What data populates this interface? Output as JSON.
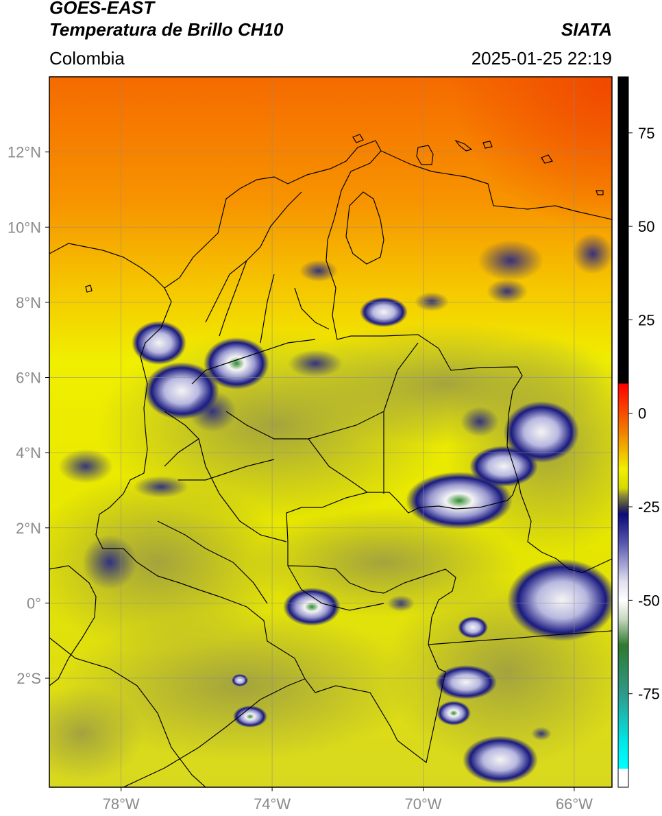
{
  "header": {
    "satellite": "GOES-EAST",
    "product": "Temperatura de Brillo CH10",
    "organization": "SIATA",
    "region": "Colombia",
    "timestamp": "2025-01-25 22:19"
  },
  "map": {
    "lon_range": [
      -79.9,
      -65.0
    ],
    "lat_range": [
      -4.9,
      14.0
    ],
    "lon_ticks": [
      {
        "value": -78,
        "label": "78°W"
      },
      {
        "value": -74,
        "label": "74°W"
      },
      {
        "value": -70,
        "label": "70°W"
      },
      {
        "value": -66,
        "label": "66°W"
      }
    ],
    "lat_ticks": [
      {
        "value": 12,
        "label": "12°N"
      },
      {
        "value": 10,
        "label": "10°N"
      },
      {
        "value": 8,
        "label": "8°N"
      },
      {
        "value": 6,
        "label": "6°N"
      },
      {
        "value": 4,
        "label": "4°N"
      },
      {
        "value": 2,
        "label": "2°N"
      },
      {
        "value": 0,
        "label": "0°"
      },
      {
        "value": -2,
        "label": "2°S"
      }
    ],
    "colors": {
      "warm_orange": "#f56a00",
      "mid_orange": "#f7a000",
      "yellow": "#f0ef00",
      "olive": "#b4b430",
      "deep_blue": "#1a1a80",
      "white": "#f4f4f4",
      "green": "#2e8b2e"
    }
  },
  "colorbar": {
    "range": [
      -100,
      90
    ],
    "ticks": [
      {
        "value": 75,
        "label": "75"
      },
      {
        "value": 50,
        "label": "50"
      },
      {
        "value": 25,
        "label": "25"
      },
      {
        "value": 0,
        "label": "0"
      },
      {
        "value": -25,
        "label": "-25"
      },
      {
        "value": -50,
        "label": "-50"
      },
      {
        "value": -75,
        "label": "-75"
      }
    ],
    "stops": [
      {
        "value": 90,
        "color": "#000000"
      },
      {
        "value": 8,
        "color": "#000000"
      },
      {
        "value": 7.9,
        "color": "#ff0000"
      },
      {
        "value": -5,
        "color": "#f08000"
      },
      {
        "value": -15,
        "color": "#f0f000"
      },
      {
        "value": -20,
        "color": "#d8d800"
      },
      {
        "value": -22,
        "color": "#8a8a3a"
      },
      {
        "value": -25,
        "color": "#3a3a4a"
      },
      {
        "value": -27,
        "color": "#0a0a7a"
      },
      {
        "value": -35,
        "color": "#5a5ab0"
      },
      {
        "value": -45,
        "color": "#e0e0f0"
      },
      {
        "value": -50,
        "color": "#ffffff"
      },
      {
        "value": -55,
        "color": "#c8d8c0"
      },
      {
        "value": -62,
        "color": "#2e7a2e"
      },
      {
        "value": -75,
        "color": "#2e9a8a"
      },
      {
        "value": -88,
        "color": "#00e8e8"
      },
      {
        "value": -95,
        "color": "#00ffff"
      },
      {
        "value": -95.1,
        "color": "#ffffff"
      },
      {
        "value": -100,
        "color": "#ffffff"
      }
    ]
  }
}
